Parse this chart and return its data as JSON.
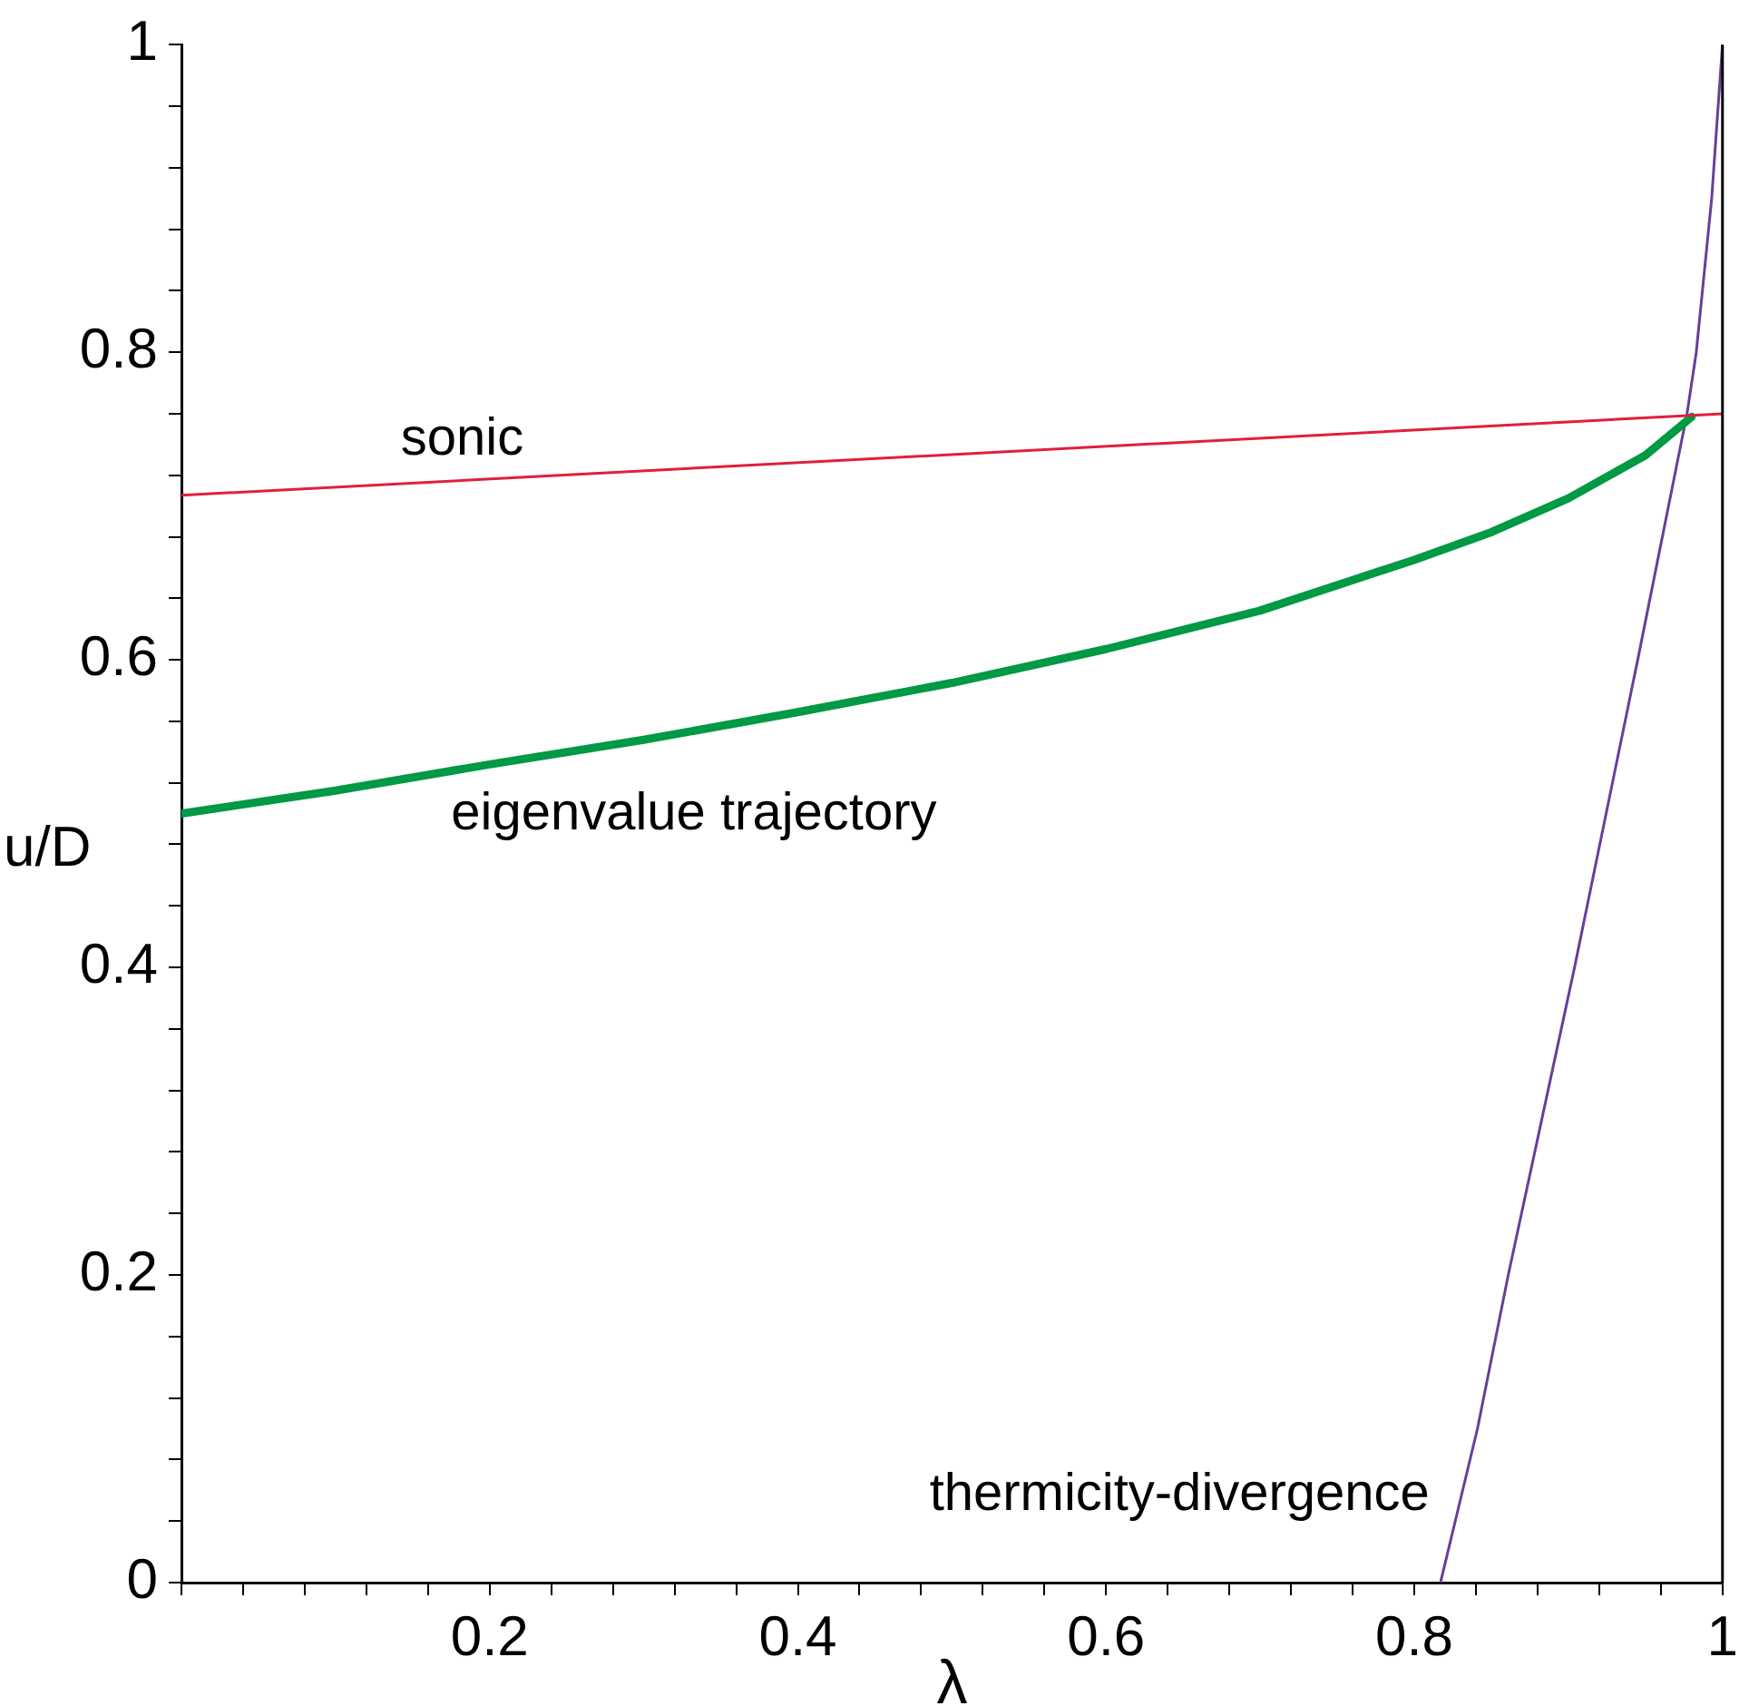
{
  "chart_data": {
    "type": "line",
    "xlabel": "λ",
    "ylabel": "u/D",
    "xlim": [
      0,
      1
    ],
    "ylim": [
      0,
      1
    ],
    "xticks": [
      {
        "value": 0,
        "label": null
      },
      {
        "value": 0.04,
        "label": null
      },
      {
        "value": 0.08,
        "label": null
      },
      {
        "value": 0.12,
        "label": null
      },
      {
        "value": 0.16,
        "label": null
      },
      0.2,
      {
        "value": 0.24,
        "label": null
      },
      {
        "value": 0.28,
        "label": null
      },
      {
        "value": 0.32,
        "label": null
      },
      {
        "value": 0.36,
        "label": null
      },
      0.4,
      {
        "value": 0.44,
        "label": null
      },
      {
        "value": 0.48,
        "label": null
      },
      {
        "value": 0.52,
        "label": null
      },
      {
        "value": 0.56,
        "label": null
      },
      0.6,
      {
        "value": 0.64,
        "label": null
      },
      {
        "value": 0.68,
        "label": null
      },
      {
        "value": 0.72,
        "label": null
      },
      {
        "value": 0.76,
        "label": null
      },
      0.8,
      {
        "value": 0.84,
        "label": null
      },
      {
        "value": 0.88,
        "label": null
      },
      {
        "value": 0.92,
        "label": null
      },
      {
        "value": 0.96,
        "label": null
      },
      1
    ],
    "yticks": [
      0,
      {
        "value": 0.04,
        "label": null
      },
      {
        "value": 0.08,
        "label": null
      },
      {
        "value": 0.12,
        "label": null
      },
      {
        "value": 0.16,
        "label": null
      },
      0.2,
      {
        "value": 0.24,
        "label": null
      },
      {
        "value": 0.28,
        "label": null
      },
      {
        "value": 0.32,
        "label": null
      },
      {
        "value": 0.36,
        "label": null
      },
      0.4,
      {
        "value": 0.44,
        "label": null
      },
      {
        "value": 0.48,
        "label": null
      },
      {
        "value": 0.52,
        "label": null
      },
      {
        "value": 0.56,
        "label": null
      },
      0.6,
      {
        "value": 0.64,
        "label": null
      },
      {
        "value": 0.68,
        "label": null
      },
      {
        "value": 0.72,
        "label": null
      },
      {
        "value": 0.76,
        "label": null
      },
      0.8,
      {
        "value": 0.84,
        "label": null
      },
      {
        "value": 0.88,
        "label": null
      },
      {
        "value": 0.92,
        "label": null
      },
      {
        "value": 0.96,
        "label": null
      },
      1
    ],
    "grid": false,
    "legend": false,
    "marker": "none",
    "line_style": "solid",
    "series": [
      {
        "name": "sonic",
        "color": "#e0203c",
        "x": [
          0,
          1
        ],
        "values": [
          0.707,
          0.76
        ]
      },
      {
        "name": "eigenvalue trajectory",
        "color": "#009944",
        "x": [
          0,
          0.1,
          0.2,
          0.3,
          0.4,
          0.5,
          0.6,
          0.7,
          0.8,
          0.85,
          0.9,
          0.95,
          0.98
        ],
        "values": [
          0.5,
          0.515,
          0.532,
          0.548,
          0.566,
          0.585,
          0.607,
          0.632,
          0.665,
          0.683,
          0.705,
          0.733,
          0.758
        ]
      },
      {
        "name": "thermicity-divergence",
        "color": "#6a3d9a",
        "x": [
          0.817,
          0.841,
          0.861,
          0.904,
          0.945,
          0.977,
          0.983,
          0.993,
          1
        ],
        "values": [
          0,
          0.1,
          0.2,
          0.4,
          0.6,
          0.76,
          0.8,
          0.9,
          1
        ]
      }
    ]
  }
}
